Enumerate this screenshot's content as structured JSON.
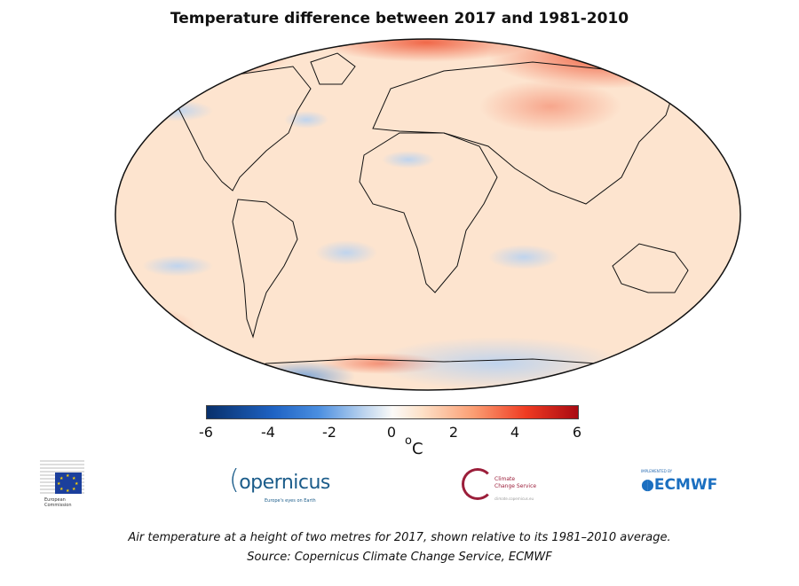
{
  "title": "Temperature difference between 2017 and 1981-2010",
  "colorbar": {
    "ticks": [
      "-6",
      "-4",
      "-2",
      "0",
      "2",
      "4",
      "6"
    ],
    "unit": "C",
    "unit_degree": "o",
    "range": [
      -6,
      6
    ],
    "colors": {
      "min": "#08306b",
      "mid": "#fbfaf8",
      "max": "#a90a12"
    }
  },
  "map": {
    "projection": "Robinson",
    "background_color": "#fde4cf",
    "warm_color": "#ef5a3a",
    "cool_color": "#c9dcf0"
  },
  "logos": {
    "eu": {
      "line1": "European",
      "line2": "Commission"
    },
    "copernicus": {
      "name": "opernicus",
      "sub": "Europe's eyes on Earth"
    },
    "c3s": {
      "line1": "Climate",
      "line2": "Change Service",
      "url": "climate.copernicus.eu"
    },
    "ecmwf": {
      "implemented": "IMPLEMENTED BY",
      "name": "ECMWF"
    }
  },
  "caption": {
    "line1": "Air temperature at a height of two metres for 2017, shown relative to its 1981–2010 average.",
    "line2": "Source: Copernicus Climate Change Service, ECMWF"
  }
}
